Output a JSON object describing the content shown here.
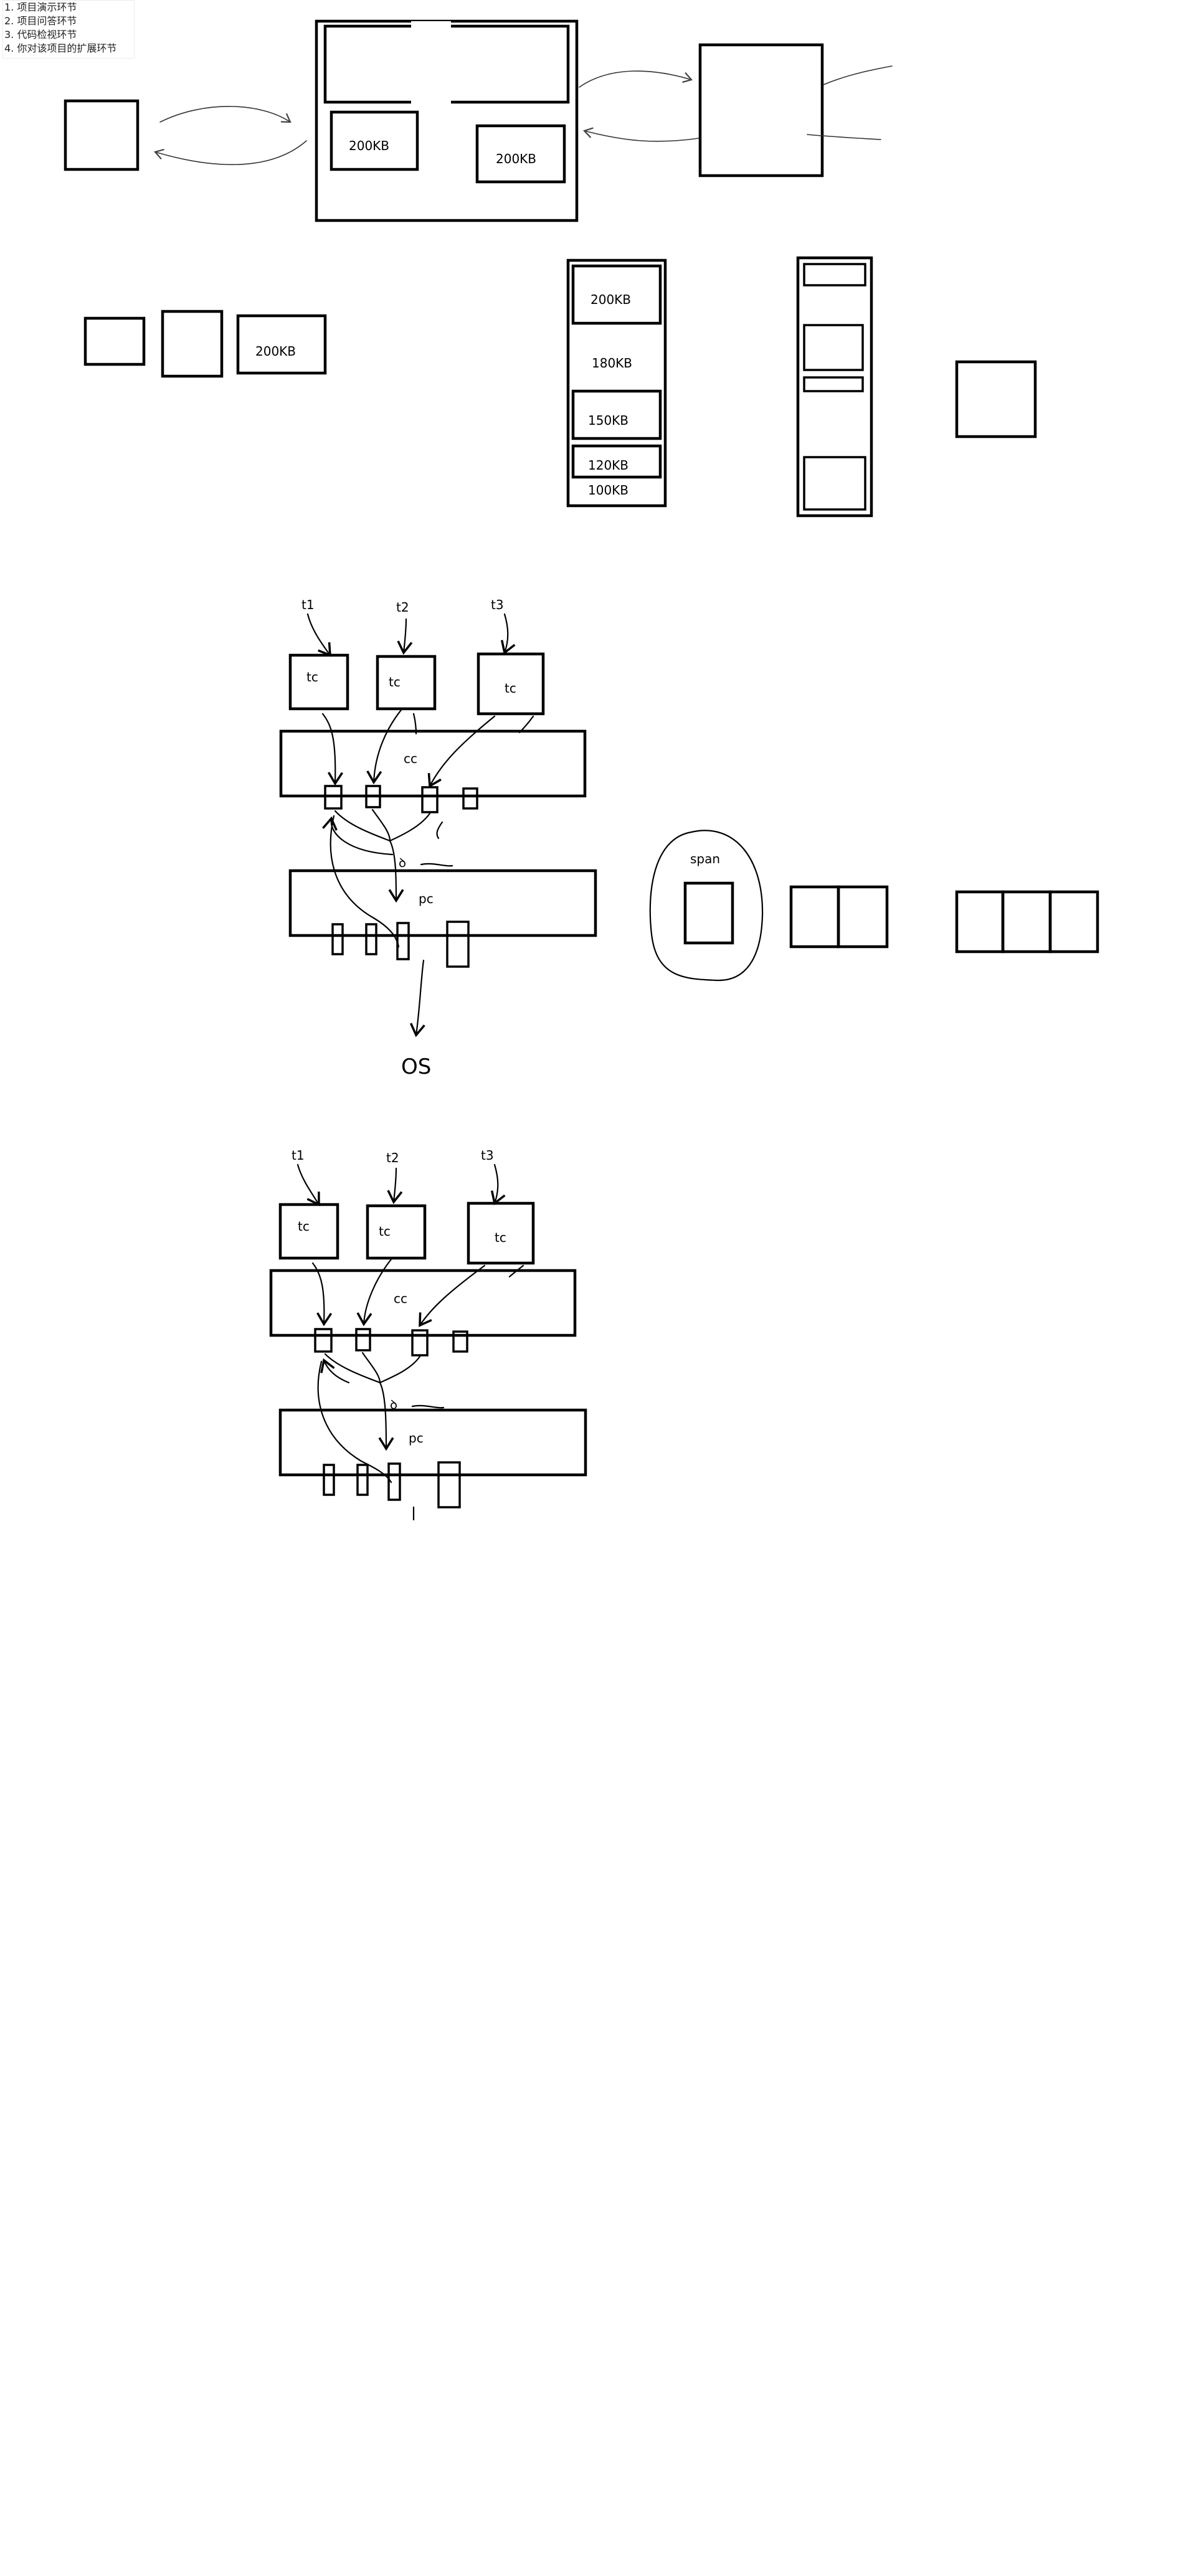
{
  "notes": [
    "1. 项目演示环节",
    "2. 项目问答环节",
    "3. 代码检视环节",
    "4. 你对该项目的扩展环节"
  ],
  "memory": {
    "kb_200": "200KB",
    "kb_180": "180KB",
    "kb_150": "150KB",
    "kb_120": "120KB",
    "kb_100": "100KB"
  },
  "diagram1": {
    "t1": "t1",
    "t2": "t2",
    "t3": "t3",
    "tc": "tc",
    "cc": "cc",
    "pc": "pc",
    "marker": "ꝺ",
    "os": "OS",
    "span": "span"
  },
  "diagram2": {
    "t1": "t1",
    "t2": "t2",
    "t3": "t3",
    "tc": "tc",
    "cc": "cc",
    "pc": "pc",
    "marker": "ꝺ"
  }
}
